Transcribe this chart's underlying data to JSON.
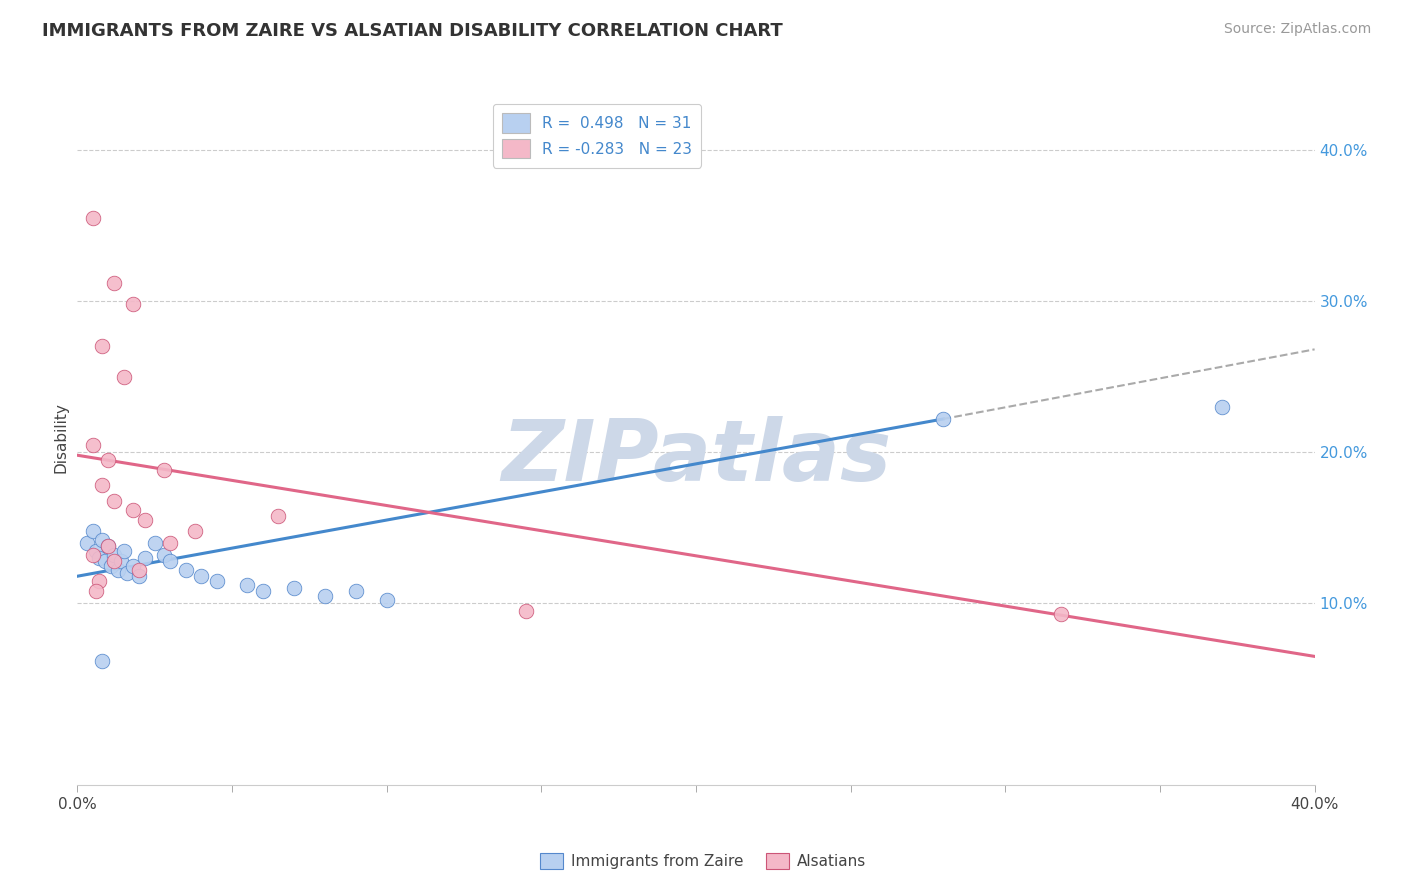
{
  "title": "IMMIGRANTS FROM ZAIRE VS ALSATIAN DISABILITY CORRELATION CHART",
  "source": "Source: ZipAtlas.com",
  "ylabel": "Disability",
  "xlim": [
    0.0,
    0.4
  ],
  "ylim": [
    -0.02,
    0.44
  ],
  "ytick_labels": [
    "10.0%",
    "20.0%",
    "30.0%",
    "40.0%"
  ],
  "ytick_values": [
    0.1,
    0.2,
    0.3,
    0.4
  ],
  "legend_r_entries": [
    {
      "label": "R =  0.498   N = 31",
      "color": "#b8d0f0"
    },
    {
      "label": "R = -0.283   N = 23",
      "color": "#f4b8c8"
    }
  ],
  "blue_dots": [
    [
      0.003,
      0.14
    ],
    [
      0.005,
      0.148
    ],
    [
      0.006,
      0.135
    ],
    [
      0.007,
      0.13
    ],
    [
      0.008,
      0.142
    ],
    [
      0.009,
      0.128
    ],
    [
      0.01,
      0.138
    ],
    [
      0.011,
      0.125
    ],
    [
      0.012,
      0.132
    ],
    [
      0.013,
      0.122
    ],
    [
      0.014,
      0.128
    ],
    [
      0.015,
      0.135
    ],
    [
      0.016,
      0.12
    ],
    [
      0.018,
      0.125
    ],
    [
      0.02,
      0.118
    ],
    [
      0.022,
      0.13
    ],
    [
      0.025,
      0.14
    ],
    [
      0.028,
      0.132
    ],
    [
      0.03,
      0.128
    ],
    [
      0.035,
      0.122
    ],
    [
      0.04,
      0.118
    ],
    [
      0.045,
      0.115
    ],
    [
      0.055,
      0.112
    ],
    [
      0.06,
      0.108
    ],
    [
      0.07,
      0.11
    ],
    [
      0.08,
      0.105
    ],
    [
      0.09,
      0.108
    ],
    [
      0.1,
      0.102
    ],
    [
      0.008,
      0.062
    ],
    [
      0.28,
      0.222
    ],
    [
      0.37,
      0.23
    ]
  ],
  "pink_dots": [
    [
      0.005,
      0.355
    ],
    [
      0.012,
      0.312
    ],
    [
      0.018,
      0.298
    ],
    [
      0.008,
      0.27
    ],
    [
      0.015,
      0.25
    ],
    [
      0.005,
      0.205
    ],
    [
      0.01,
      0.195
    ],
    [
      0.028,
      0.188
    ],
    [
      0.008,
      0.178
    ],
    [
      0.012,
      0.168
    ],
    [
      0.018,
      0.162
    ],
    [
      0.022,
      0.155
    ],
    [
      0.038,
      0.148
    ],
    [
      0.03,
      0.14
    ],
    [
      0.01,
      0.138
    ],
    [
      0.005,
      0.132
    ],
    [
      0.012,
      0.128
    ],
    [
      0.02,
      0.122
    ],
    [
      0.007,
      0.115
    ],
    [
      0.145,
      0.095
    ],
    [
      0.318,
      0.093
    ],
    [
      0.065,
      0.158
    ],
    [
      0.006,
      0.108
    ]
  ],
  "blue_line": {
    "x": [
      0.0,
      0.28
    ],
    "y": [
      0.118,
      0.222
    ]
  },
  "pink_line": {
    "x": [
      0.0,
      0.4
    ],
    "y": [
      0.198,
      0.065
    ]
  },
  "blue_dashed_line": {
    "x": [
      0.28,
      0.4
    ],
    "y": [
      0.222,
      0.268
    ]
  },
  "background_color": "#ffffff",
  "grid_color": "#cccccc",
  "dot_size": 110,
  "blue_dot_color": "#b8d0f0",
  "blue_dot_edge": "#5588cc",
  "pink_dot_color": "#f4b8c8",
  "pink_dot_edge": "#cc5577",
  "watermark": "ZIPatlas",
  "watermark_color": "#cdd8e8"
}
